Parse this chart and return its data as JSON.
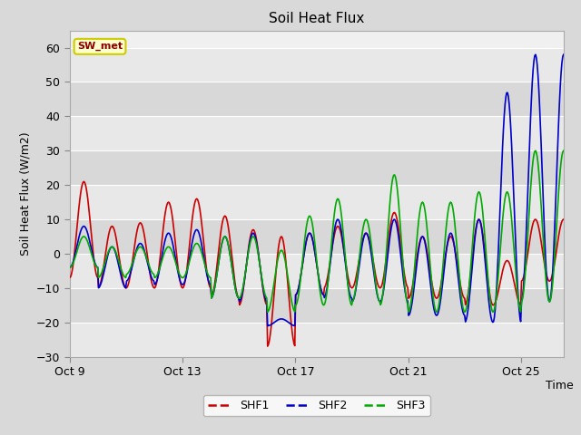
{
  "title": "Soil Heat Flux",
  "xlabel": "Time",
  "ylabel": "Soil Heat Flux (W/m2)",
  "ylim": [
    -30,
    65
  ],
  "yticks": [
    -30,
    -20,
    -10,
    0,
    10,
    20,
    30,
    40,
    50,
    60
  ],
  "xlim": [
    0,
    17.5
  ],
  "bg_color": "#d9d9d9",
  "plot_bg_color": "#f0f0f0",
  "line_colors": {
    "SHF1": "#cc0000",
    "SHF2": "#0000cc",
    "SHF3": "#00aa00"
  },
  "legend_label": "SW_met",
  "legend_box_facecolor": "#ffffcc",
  "legend_box_edge": "#cccc00",
  "x_tick_labels": [
    "Oct 9",
    "Oct 13",
    "Oct 17",
    "Oct 21",
    "Oct 25"
  ],
  "x_tick_positions": [
    0,
    4,
    8,
    12,
    16
  ],
  "band_colors": [
    "#e8e8e8",
    "#d8d8d8"
  ],
  "shf1_peaks": [
    21,
    8,
    9,
    15,
    16,
    11,
    7,
    5,
    6,
    8,
    6,
    12,
    5,
    5,
    10,
    -2,
    10
  ],
  "shf1_troughs": [
    -7,
    -10,
    -10,
    -10,
    -10,
    -13,
    -15,
    -27,
    -12,
    -10,
    -10,
    -10,
    -13,
    -13,
    -15,
    -15,
    -8
  ],
  "shf2_peaks": [
    8,
    2,
    3,
    6,
    7,
    5,
    6,
    -19,
    6,
    10,
    6,
    10,
    5,
    6,
    10,
    47,
    58
  ],
  "shf2_troughs": [
    -4,
    -10,
    -8,
    -9,
    -9,
    -13,
    -14,
    -21,
    -12,
    -13,
    -14,
    -14,
    -18,
    -18,
    -20,
    -20,
    -14
  ],
  "shf3_peaks": [
    5,
    2,
    2,
    2,
    3,
    5,
    5,
    1,
    11,
    16,
    10,
    23,
    15,
    15,
    18,
    18,
    30
  ],
  "shf3_troughs": [
    -4,
    -7,
    -6,
    -7,
    -7,
    -13,
    -13,
    -17,
    -15,
    -15,
    -14,
    -15,
    -17,
    -17,
    -17,
    -17,
    -14
  ]
}
